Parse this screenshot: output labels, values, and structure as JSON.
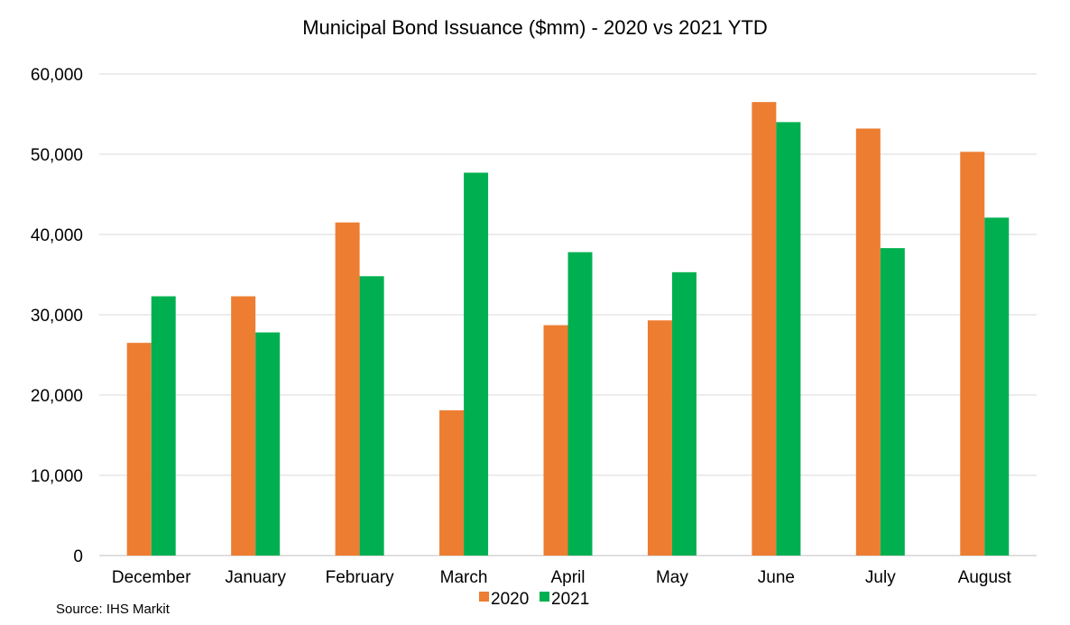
{
  "chart_data": {
    "type": "bar",
    "title": "Municipal Bond Issuance ($mm) - 2020 vs 2021 YTD",
    "categories": [
      "December",
      "January",
      "February",
      "March",
      "April",
      "May",
      "June",
      "July",
      "August"
    ],
    "series": [
      {
        "name": "2020",
        "color": "#ED7D31",
        "values": [
          26500,
          32300,
          41500,
          18100,
          28700,
          29300,
          56500,
          53200,
          50300
        ]
      },
      {
        "name": "2021",
        "color": "#00B050",
        "values": [
          32300,
          27800,
          34800,
          47700,
          37800,
          35300,
          54000,
          38300,
          42100
        ]
      }
    ],
    "y_ticks": [
      "0",
      "10,000",
      "20,000",
      "30,000",
      "40,000",
      "50,000",
      "60,000"
    ],
    "ylim": [
      0,
      60000
    ],
    "grid": true,
    "legend_position": "bottom"
  },
  "source_text": "Source: IHS Markit"
}
